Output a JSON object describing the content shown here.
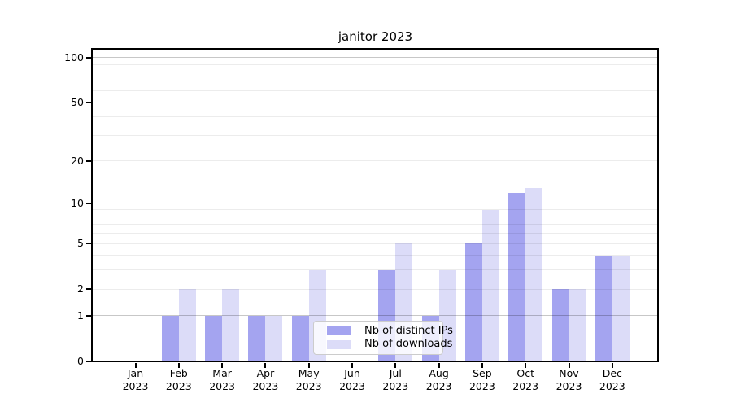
{
  "title": "janitor 2023",
  "chart_data": {
    "type": "bar",
    "title": "janitor 2023",
    "categories": [
      "Jan 2023",
      "Feb 2023",
      "Mar 2023",
      "Apr 2023",
      "May 2023",
      "Jun 2023",
      "Jul 2023",
      "Aug 2023",
      "Sep 2023",
      "Oct 2023",
      "Nov 2023",
      "Dec 2023"
    ],
    "series": [
      {
        "name": "Nb of distinct IPs",
        "color": "#a4a4f0",
        "values": [
          0,
          1,
          1,
          1,
          1,
          0,
          3,
          1,
          5,
          12,
          2,
          4
        ]
      },
      {
        "name": "Nb of downloads",
        "color": "#dcdcf8",
        "values": [
          0,
          2,
          2,
          1,
          3,
          0,
          5,
          3,
          9,
          13,
          2,
          4
        ]
      }
    ],
    "xlabel": "",
    "ylabel": "",
    "yscale": "log1p",
    "ylim": [
      0,
      115
    ],
    "yticks": [
      0,
      1,
      2,
      5,
      10,
      20,
      50,
      100
    ],
    "major_gridlines": [
      1,
      10,
      100
    ],
    "minor_gridlines": [
      2,
      3,
      4,
      5,
      6,
      7,
      8,
      9,
      20,
      30,
      40,
      50,
      60,
      70,
      80,
      90
    ],
    "grid": true,
    "legend_position": "inside lower center"
  },
  "legend": {
    "entries": [
      {
        "label": "Nb of distinct IPs",
        "swatch_color": "#a4a4f0"
      },
      {
        "label": "Nb of downloads",
        "swatch_color": "#dcdcf8"
      }
    ]
  },
  "colors": {
    "background": "#ffffff",
    "axis": "#000000",
    "major_grid": "#c6c6c6",
    "minor_grid": "#ececec",
    "legend_border": "#cccccc",
    "text": "#000000"
  }
}
